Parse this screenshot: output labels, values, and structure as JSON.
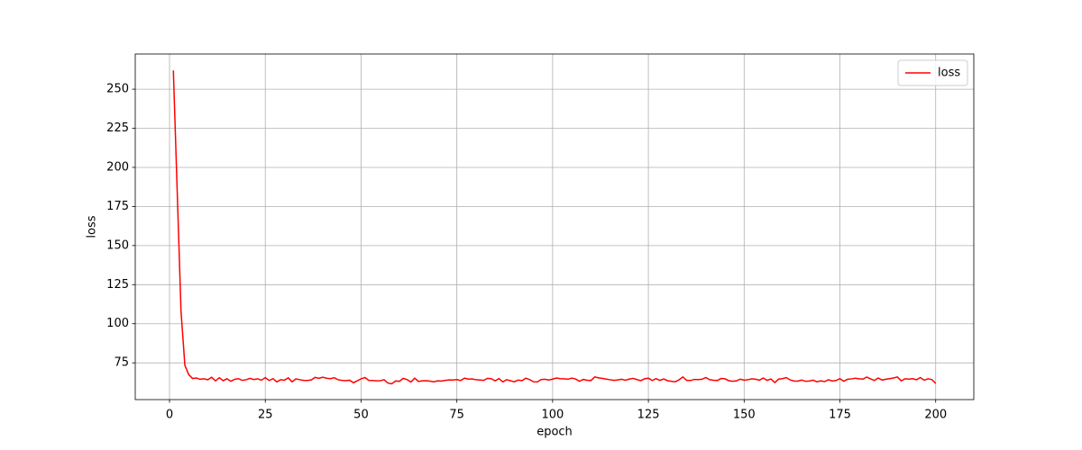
{
  "chart_data": {
    "type": "line",
    "title": null,
    "x_label": "epoch",
    "y_label": "loss",
    "x": [
      1,
      2,
      3,
      4,
      5,
      6,
      7,
      8,
      9,
      10,
      11,
      12,
      13,
      14,
      15,
      16,
      17,
      18,
      19,
      20,
      21,
      22,
      23,
      24,
      25,
      26,
      27,
      28,
      29,
      30,
      31,
      32,
      33,
      34,
      35,
      36,
      37,
      38,
      39,
      40,
      41,
      42,
      43,
      44,
      45,
      46,
      47,
      48,
      49,
      50,
      51,
      52,
      53,
      54,
      55,
      56,
      57,
      58,
      59,
      60,
      61,
      62,
      63,
      64,
      65,
      66,
      67,
      68,
      69,
      70,
      71,
      72,
      73,
      74,
      75,
      76,
      77,
      78,
      79,
      80,
      81,
      82,
      83,
      84,
      85,
      86,
      87,
      88,
      89,
      90,
      91,
      92,
      93,
      94,
      95,
      96,
      97,
      98,
      99,
      100,
      101,
      102,
      103,
      104,
      105,
      106,
      107,
      108,
      109,
      110,
      111,
      112,
      113,
      114,
      115,
      116,
      117,
      118,
      119,
      120,
      121,
      122,
      123,
      124,
      125,
      126,
      127,
      128,
      129,
      130,
      131,
      132,
      133,
      134,
      135,
      136,
      137,
      138,
      139,
      140,
      141,
      142,
      143,
      144,
      145,
      146,
      147,
      148,
      149,
      150,
      151,
      152,
      153,
      154,
      155,
      156,
      157,
      158,
      159,
      160,
      161,
      162,
      163,
      164,
      165,
      166,
      167,
      168,
      169,
      170,
      171,
      172,
      173,
      174,
      175,
      176,
      177,
      178,
      179,
      180,
      181,
      182,
      183,
      184,
      185,
      186,
      187,
      188,
      189,
      190,
      191,
      192,
      193,
      194,
      195,
      196,
      197,
      198,
      199,
      200
    ],
    "series": [
      {
        "name": "loss",
        "color": "#ff0000",
        "values": [
          262,
          185,
          108,
          73.5,
          67.5,
          65,
          65.3,
          64.5,
          64.8,
          64.2,
          65.8,
          63.5,
          65.5,
          63.6,
          64.8,
          63.2,
          64.5,
          64.9,
          63.8,
          64.2,
          65.1,
          64.3,
          64.8,
          63.9,
          65.6,
          63.7,
          64.9,
          62.8,
          64.2,
          63.9,
          65.4,
          62.9,
          64.8,
          64.2,
          63.8,
          63.7,
          64.1,
          65.7,
          65.1,
          65.8,
          65.2,
          64.9,
          65.5,
          64.2,
          63.8,
          63.6,
          63.9,
          62.3,
          63.5,
          64.8,
          65.6,
          63.8,
          63.7,
          63.5,
          63.6,
          64.2,
          62.1,
          61.6,
          63.4,
          63.2,
          65.1,
          64.3,
          62.8,
          65.2,
          63.1,
          63.5,
          63.6,
          63.3,
          62.9,
          63.5,
          63.4,
          63.8,
          64.1,
          64.0,
          64.3,
          63.7,
          65.2,
          64.6,
          64.7,
          64.2,
          64.0,
          63.8,
          65.1,
          64.8,
          63.5,
          64.9,
          62.8,
          64.2,
          63.6,
          62.9,
          64.0,
          63.6,
          65.2,
          64.3,
          62.9,
          62.8,
          64.3,
          64.5,
          64.0,
          64.6,
          65.3,
          64.9,
          64.8,
          64.5,
          65.2,
          64.7,
          63.2,
          64.4,
          63.9,
          63.7,
          66.0,
          65.4,
          65.0,
          64.6,
          64.2,
          63.8,
          64.1,
          64.5,
          63.9,
          64.6,
          65.1,
          64.3,
          63.6,
          64.8,
          65.2,
          63.7,
          64.9,
          63.8,
          64.7,
          63.6,
          63.2,
          62.9,
          64.1,
          66.0,
          63.8,
          63.7,
          64.4,
          64.3,
          64.5,
          65.6,
          64.2,
          63.9,
          63.7,
          65.0,
          64.8,
          63.6,
          63.2,
          63.5,
          64.6,
          63.9,
          64.2,
          64.8,
          64.5,
          63.9,
          65.3,
          63.8,
          64.7,
          62.4,
          64.6,
          64.9,
          65.6,
          64.1,
          63.4,
          63.3,
          64.0,
          63.2,
          63.4,
          63.9,
          62.9,
          63.5,
          63.0,
          64.2,
          63.4,
          63.7,
          64.9,
          63.2,
          64.5,
          64.7,
          65.2,
          64.8,
          64.6,
          65.9,
          64.8,
          63.7,
          65.3,
          64.0,
          64.5,
          64.9,
          65.3,
          66.0,
          63.5,
          64.8,
          64.6,
          64.9,
          64.2,
          65.6,
          63.9,
          64.8,
          64.3,
          61.9
        ]
      }
    ],
    "xlim": [
      -8.95,
      209.95
    ],
    "ylim": [
      51.5,
      272.5
    ],
    "xticks": [
      0,
      25,
      50,
      75,
      100,
      125,
      150,
      175,
      200
    ],
    "yticks": [
      75,
      100,
      125,
      150,
      175,
      200,
      225,
      250
    ],
    "grid": true,
    "legend": "upper right"
  }
}
